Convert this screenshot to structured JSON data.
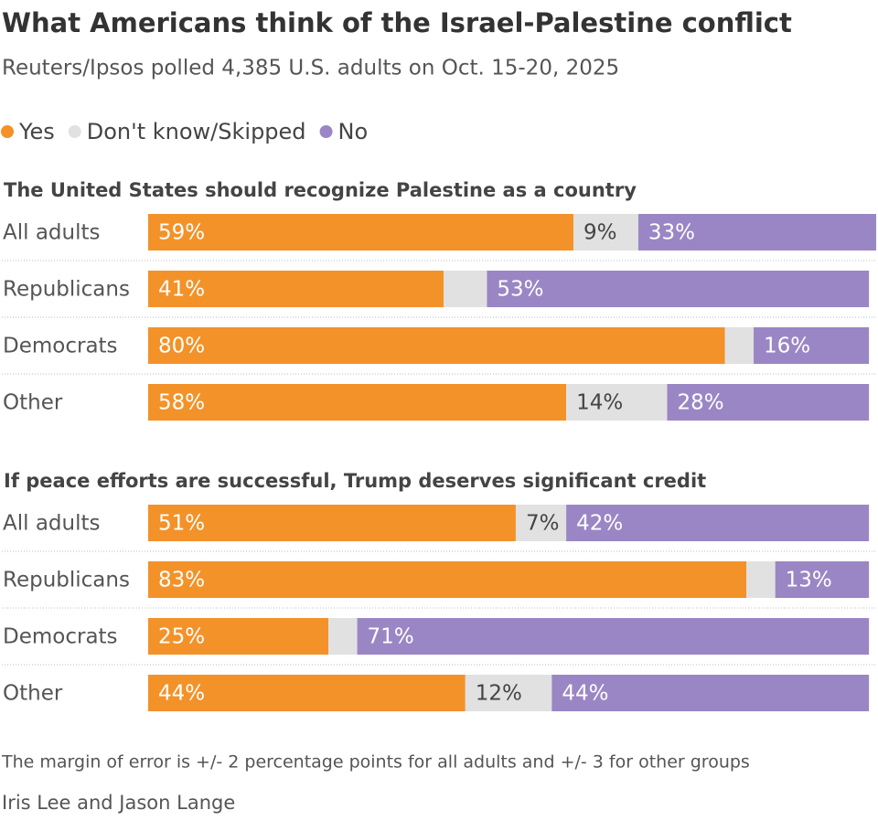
{
  "title": "What Americans think of the Israel-Palestine conflict",
  "subtitle": "Reuters/Ipsos polled 4,385 U.S. adults on Oct. 15-20, 2025",
  "note": "The margin of error is +/- 2 percentage points for all adults and +/- 3 for other groups",
  "credit": "Iris Lee and Jason Lange",
  "chart_data": [
    {
      "type": "stacked-bar",
      "orientation": "horizontal",
      "title": "The United States should recognize Palestine as a country",
      "categories": [
        "All adults",
        "Republicans",
        "Democrats",
        "Other"
      ],
      "xlim": [
        0,
        101
      ],
      "series": [
        {
          "name": "Yes",
          "color": "#f39229",
          "values": [
            59,
            41,
            80,
            58
          ],
          "value_labels": [
            "59%",
            "41%",
            "80%",
            "58%"
          ]
        },
        {
          "name": "Don't know/Skipped",
          "color": "#e1e1e1",
          "values": [
            9,
            6,
            4,
            14
          ],
          "value_labels": [
            "9%",
            null,
            null,
            "14%"
          ]
        },
        {
          "name": "No",
          "color": "#9a86c4",
          "values": [
            33,
            53,
            16,
            28
          ],
          "value_labels": [
            "33%",
            "53%",
            "16%",
            "28%"
          ]
        }
      ]
    },
    {
      "type": "stacked-bar",
      "orientation": "horizontal",
      "title": "If peace efforts are successful, Trump deserves significant credit",
      "categories": [
        "All adults",
        "Republicans",
        "Democrats",
        "Other"
      ],
      "xlim": [
        0,
        101
      ],
      "series": [
        {
          "name": "Yes",
          "color": "#f39229",
          "values": [
            51,
            83,
            25,
            44
          ],
          "value_labels": [
            "51%",
            "83%",
            "25%",
            "44%"
          ]
        },
        {
          "name": "Don't know/Skipped",
          "color": "#e1e1e1",
          "values": [
            7,
            4,
            4,
            12
          ],
          "value_labels": [
            "7%",
            null,
            null,
            "12%"
          ]
        },
        {
          "name": "No",
          "color": "#9a86c4",
          "values": [
            42,
            13,
            71,
            44
          ],
          "value_labels": [
            "42%",
            "13%",
            "71%",
            "44%"
          ]
        }
      ]
    }
  ]
}
